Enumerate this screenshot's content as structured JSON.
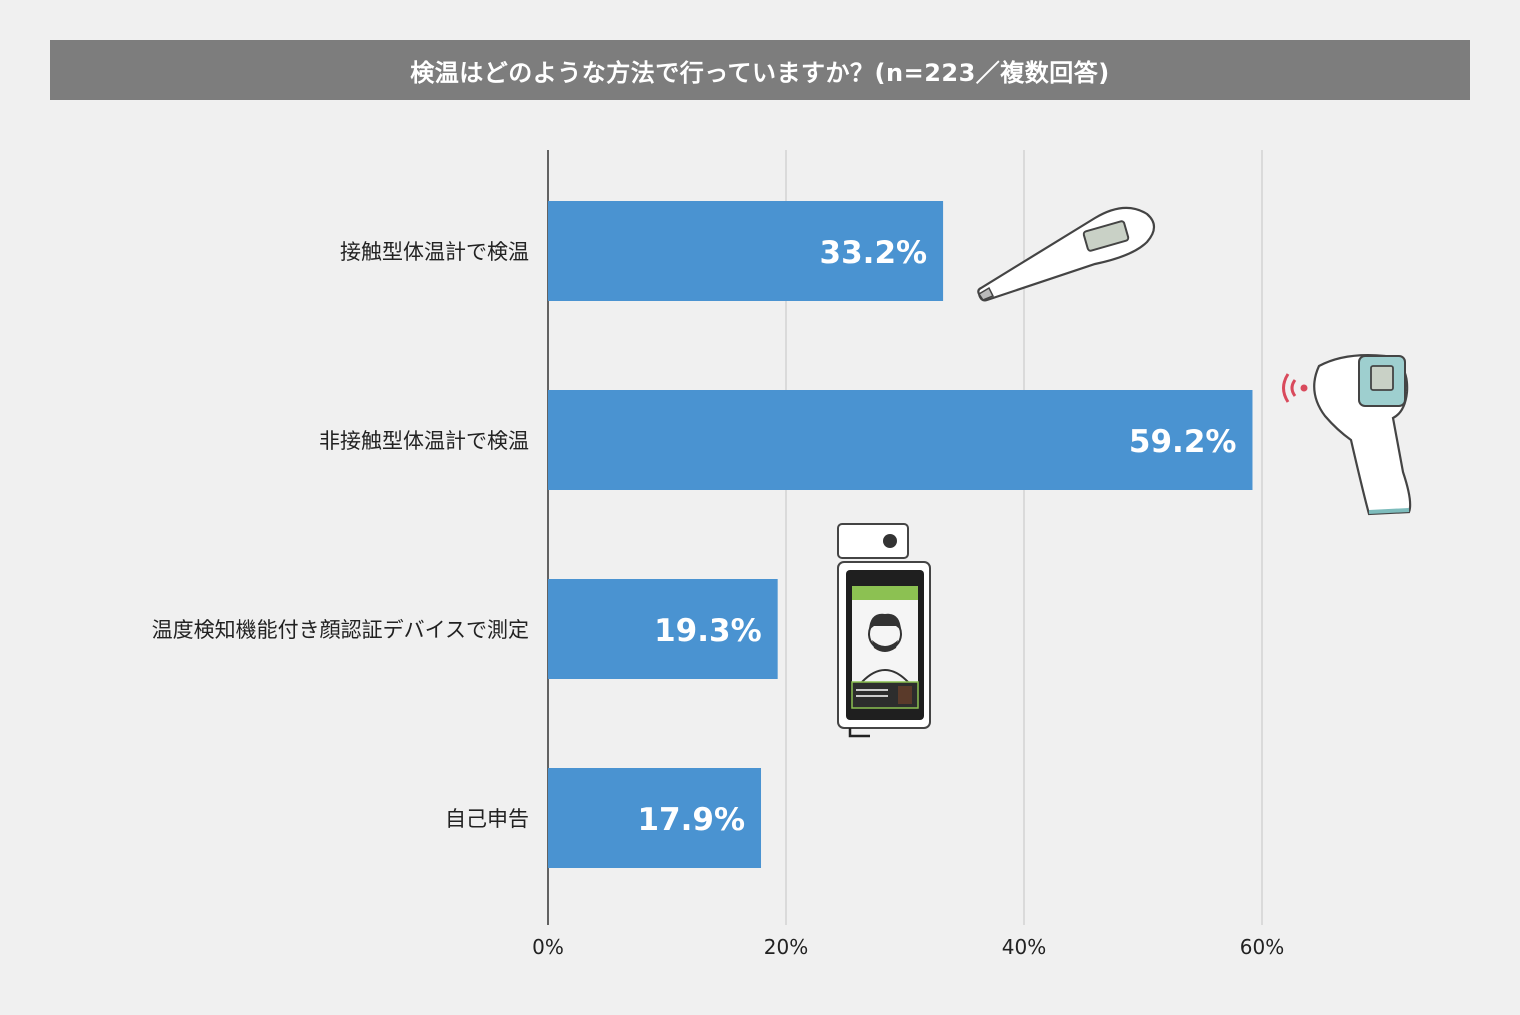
{
  "title": "検温はどのような方法で行っていますか？(n=223／複数回答)",
  "chart_data": {
    "type": "bar",
    "orientation": "horizontal",
    "title": "検温はどのような方法で行っていますか？(n=223／複数回答)",
    "categories": [
      "接触型体温計で検温",
      "非接触型体温計で検温",
      "温度検知機能付き顔認証デバイスで測定",
      "自己申告"
    ],
    "values": [
      33.2,
      59.2,
      19.3,
      17.9
    ],
    "value_labels": [
      "33.2%",
      "59.2%",
      "19.3%",
      "17.9%"
    ],
    "xticks": [
      0,
      20,
      40,
      60
    ],
    "xtick_labels": [
      "0%",
      "20%",
      "40%",
      "60%"
    ],
    "xlim": [
      0,
      60
    ],
    "grid": true,
    "bar_color": "#4a93d1"
  },
  "icons": [
    "thermometer-icon",
    "infrared-thermometer-icon",
    "face-recognition-device-icon"
  ]
}
